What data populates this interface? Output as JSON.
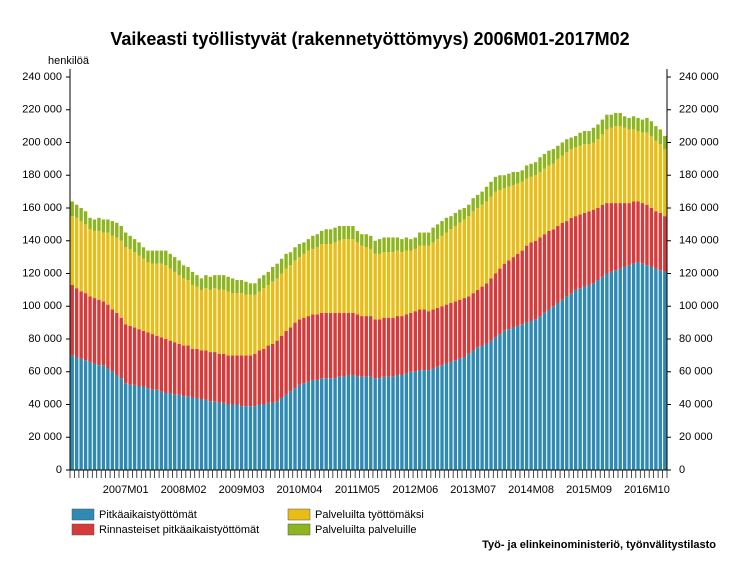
{
  "chart_data": {
    "type": "stacked_bar",
    "title": "Vaikeasti työllistyvät (rakennetyöttömyys) 2006M01-2017M02",
    "y_axis_label": "henkilöä",
    "source": "Työ- ja elinkeinoministeriö, työnvälitystilasto",
    "categories": [
      null,
      null,
      null,
      null,
      null,
      null,
      null,
      null,
      null,
      null,
      null,
      null,
      "2007M01",
      null,
      null,
      null,
      null,
      null,
      null,
      null,
      null,
      null,
      null,
      null,
      null,
      "2008M02",
      null,
      null,
      null,
      null,
      null,
      null,
      null,
      null,
      null,
      null,
      null,
      null,
      "2009M03",
      null,
      null,
      null,
      null,
      null,
      null,
      null,
      null,
      null,
      null,
      null,
      null,
      "2010M04",
      null,
      null,
      null,
      null,
      null,
      null,
      null,
      null,
      null,
      null,
      null,
      null,
      "2011M05",
      null,
      null,
      null,
      null,
      null,
      null,
      null,
      null,
      null,
      null,
      null,
      null,
      "2012M06",
      null,
      null,
      null,
      null,
      null,
      null,
      null,
      null,
      null,
      null,
      null,
      null,
      "2013M07",
      null,
      null,
      null,
      null,
      null,
      null,
      null,
      null,
      null,
      null,
      null,
      null,
      "2014M08",
      null,
      null,
      null,
      null,
      null,
      null,
      null,
      null,
      null,
      null,
      null,
      null,
      "2015M09",
      null,
      null,
      null,
      null,
      null,
      null,
      null,
      null,
      null,
      null,
      null,
      null,
      "2016M10",
      null,
      null,
      null,
      null
    ],
    "series": [
      {
        "name": "Pitkäaikaistyöttömät",
        "color": "#2e8ab3",
        "values": [
          70000,
          69000,
          68000,
          67000,
          66000,
          65000,
          64000,
          64000,
          62000,
          60000,
          58000,
          56000,
          53000,
          52000,
          52000,
          51000,
          51000,
          50000,
          49000,
          49000,
          48000,
          47000,
          47000,
          46000,
          46000,
          45000,
          45000,
          44000,
          44000,
          43000,
          43000,
          42000,
          42000,
          41000,
          41000,
          40000,
          40000,
          40000,
          39000,
          39000,
          39000,
          39000,
          40000,
          40000,
          41000,
          41000,
          42000,
          44000,
          46000,
          48000,
          50000,
          52000,
          53000,
          54000,
          55000,
          55000,
          56000,
          56000,
          56000,
          56000,
          57000,
          57000,
          58000,
          58000,
          57000,
          57000,
          57000,
          57000,
          56000,
          56000,
          57000,
          57000,
          57000,
          58000,
          58000,
          59000,
          60000,
          60000,
          61000,
          61000,
          61000,
          62000,
          63000,
          64000,
          65000,
          66000,
          67000,
          68000,
          69000,
          71000,
          73000,
          75000,
          76000,
          77000,
          79000,
          81000,
          83000,
          85000,
          86000,
          87000,
          88000,
          89000,
          90000,
          91000,
          92000,
          94000,
          96000,
          98000,
          100000,
          102000,
          104000,
          106000,
          108000,
          110000,
          111000,
          112000,
          113000,
          114000,
          116000,
          118000,
          120000,
          121000,
          122000,
          123000,
          124000,
          125000,
          126000,
          127000,
          126000,
          125000,
          124000,
          123000,
          122000,
          121000
        ]
      },
      {
        "name": "Rinnasteiset pitkäaikaistyöttömät",
        "color": "#d63a3a",
        "values": [
          43000,
          42000,
          41000,
          41000,
          40000,
          40000,
          40000,
          39000,
          39000,
          38000,
          38000,
          37000,
          36000,
          36000,
          35000,
          35000,
          34000,
          34000,
          34000,
          33000,
          33000,
          33000,
          32000,
          32000,
          31000,
          31000,
          31000,
          30000,
          30000,
          30000,
          30000,
          30000,
          30000,
          30000,
          30000,
          30000,
          30000,
          30000,
          31000,
          31000,
          31000,
          32000,
          33000,
          34000,
          35000,
          36000,
          37000,
          38000,
          39000,
          39000,
          40000,
          40000,
          40000,
          40000,
          40000,
          40000,
          40000,
          40000,
          40000,
          40000,
          39000,
          39000,
          38000,
          38000,
          38000,
          37000,
          37000,
          37000,
          36000,
          36000,
          36000,
          36000,
          36000,
          36000,
          36000,
          36000,
          36000,
          37000,
          37000,
          37000,
          36000,
          36000,
          36000,
          36000,
          36000,
          36000,
          36000,
          36000,
          36000,
          35000,
          35000,
          35000,
          36000,
          37000,
          38000,
          39000,
          40000,
          41000,
          42000,
          43000,
          44000,
          45000,
          47000,
          48000,
          48000,
          48000,
          48000,
          48000,
          47000,
          47000,
          47000,
          46000,
          46000,
          45000,
          45000,
          45000,
          45000,
          45000,
          44000,
          44000,
          43000,
          42000,
          41000,
          40000,
          39000,
          38000,
          38000,
          37000,
          37000,
          37000,
          36000,
          35000,
          35000,
          34000
        ]
      },
      {
        "name": "Palveluilta työttömäksi",
        "color": "#e8bd16",
        "values": [
          42000,
          43000,
          43000,
          42000,
          41000,
          41000,
          42000,
          42000,
          44000,
          45000,
          46000,
          47000,
          47000,
          47000,
          46000,
          45000,
          44000,
          43000,
          43000,
          44000,
          45000,
          45000,
          44000,
          43000,
          42000,
          41000,
          40000,
          39000,
          38000,
          37000,
          38000,
          38000,
          39000,
          39000,
          39000,
          39000,
          38000,
          38000,
          38000,
          37000,
          37000,
          36000,
          36000,
          37000,
          37000,
          38000,
          38000,
          38000,
          38000,
          38000,
          38000,
          38000,
          39000,
          40000,
          40000,
          41000,
          42000,
          42000,
          42000,
          43000,
          44000,
          45000,
          45000,
          45000,
          44000,
          43000,
          42000,
          41000,
          40000,
          40000,
          40000,
          40000,
          40000,
          40000,
          39000,
          39000,
          38000,
          38000,
          39000,
          39000,
          40000,
          41000,
          42000,
          43000,
          44000,
          45000,
          46000,
          47000,
          48000,
          49000,
          50000,
          50000,
          50000,
          50000,
          50000,
          50000,
          48000,
          46000,
          45000,
          44000,
          43000,
          42000,
          41000,
          40000,
          40000,
          40000,
          40000,
          40000,
          40000,
          41000,
          41000,
          42000,
          42000,
          42000,
          42000,
          42000,
          41000,
          41000,
          42000,
          43000,
          45000,
          46000,
          47000,
          47000,
          46000,
          45000,
          44000,
          43000,
          43000,
          44000,
          44000,
          43000,
          42000,
          41000
        ]
      },
      {
        "name": "Palveluilta palveluille",
        "color": "#8cb51f",
        "values": [
          9000,
          8000,
          8000,
          8000,
          7000,
          7000,
          8000,
          8000,
          8000,
          9000,
          9000,
          9000,
          9000,
          8000,
          8000,
          8000,
          7000,
          7000,
          8000,
          8000,
          8000,
          9000,
          9000,
          9000,
          9000,
          8000,
          8000,
          8000,
          7000,
          7000,
          8000,
          8000,
          8000,
          9000,
          9000,
          9000,
          9000,
          8000,
          8000,
          8000,
          7000,
          7000,
          8000,
          8000,
          8000,
          9000,
          9000,
          9000,
          9000,
          8000,
          8000,
          8000,
          7000,
          7000,
          8000,
          8000,
          8000,
          9000,
          9000,
          9000,
          9000,
          8000,
          8000,
          8000,
          7000,
          7000,
          8000,
          8000,
          8000,
          9000,
          9000,
          9000,
          9000,
          8000,
          8000,
          8000,
          7000,
          7000,
          8000,
          8000,
          8000,
          9000,
          9000,
          9000,
          9000,
          8000,
          8000,
          8000,
          7000,
          7000,
          8000,
          8000,
          8000,
          9000,
          9000,
          9000,
          9000,
          8000,
          8000,
          8000,
          7000,
          7000,
          8000,
          8000,
          8000,
          9000,
          9000,
          9000,
          9000,
          8000,
          8000,
          8000,
          7000,
          7000,
          8000,
          8000,
          8000,
          9000,
          9000,
          9000,
          9000,
          8000,
          8000,
          8000,
          7000,
          7000,
          8000,
          8000,
          8000,
          9000,
          9000,
          9000,
          9000,
          8000
        ]
      }
    ],
    "ylim": [
      0,
      240000
    ],
    "yticks": [
      0,
      {
        "value": 20000,
        "label": "20 000"
      },
      {
        "value": 40000,
        "label": "40 000"
      },
      {
        "value": 60000,
        "label": "60 000"
      },
      {
        "value": 80000,
        "label": "80 000"
      },
      {
        "value": 100000,
        "label": "100 000"
      },
      {
        "value": 120000,
        "label": "120 000"
      },
      {
        "value": 140000,
        "label": "140 000"
      },
      {
        "value": 160000,
        "label": "160 000"
      },
      {
        "value": 180000,
        "label": "180 000"
      },
      {
        "value": 200000,
        "label": "200 000"
      },
      {
        "value": 220000,
        "label": "220 000"
      },
      {
        "value": 240000,
        "label": "240 000"
      }
    ],
    "grid": false,
    "legend": "bottom-left"
  }
}
